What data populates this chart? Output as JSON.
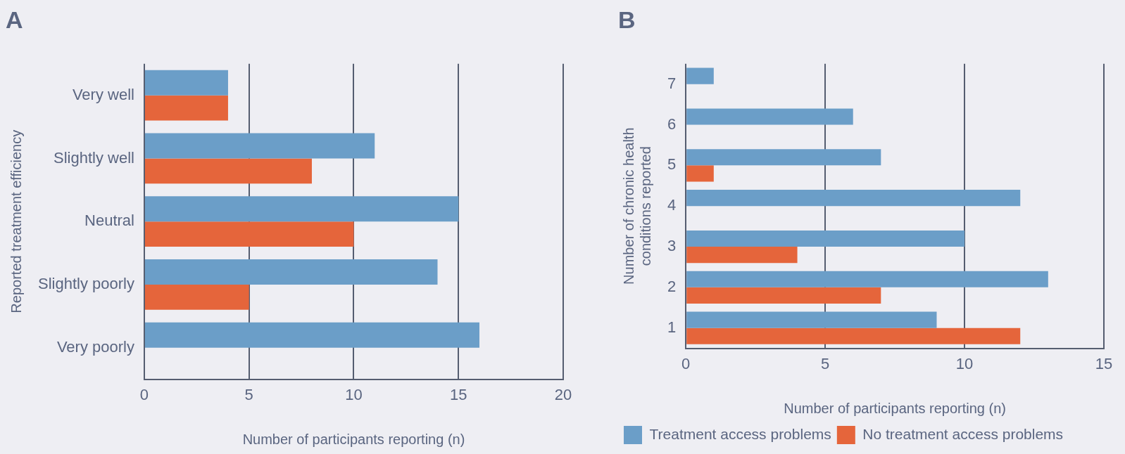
{
  "chart_data": [
    {
      "type": "bar",
      "orientation": "horizontal",
      "title": "A",
      "ylabel": "Reported treatment efficiency",
      "xlabel": "Number of participants reporting (n)",
      "categories": [
        "Very well",
        "Slightly well",
        "Neutral",
        "Slightly poorly",
        "Very poorly"
      ],
      "series": [
        {
          "color": "#6b9ec8",
          "values": [
            4,
            11,
            15,
            14,
            16
          ]
        },
        {
          "color": "#e5653b",
          "values": [
            4,
            8,
            10,
            5,
            null
          ]
        }
      ],
      "xlim": [
        0,
        20
      ],
      "xticks": [
        0,
        5,
        10,
        15,
        20
      ],
      "grid": "x",
      "legend": false
    },
    {
      "type": "bar",
      "orientation": "horizontal",
      "title": "B",
      "ylabel": "Number of chronic health conditions reported",
      "xlabel": "Number of participants reporting (n)",
      "categories": [
        "7",
        "6",
        "5",
        "4",
        "3",
        "2",
        "1"
      ],
      "series": [
        {
          "name": "Treatment access problems",
          "color": "#6b9ec8",
          "values": [
            1,
            6,
            7,
            12,
            10,
            13,
            9
          ]
        },
        {
          "name": "No treatment access problems",
          "color": "#e5653b",
          "values": [
            null,
            null,
            1,
            null,
            4,
            7,
            12
          ]
        }
      ],
      "xlim": [
        0,
        15
      ],
      "xticks": [
        0,
        5,
        10,
        15
      ],
      "grid": "x",
      "legend": "bottom"
    }
  ]
}
